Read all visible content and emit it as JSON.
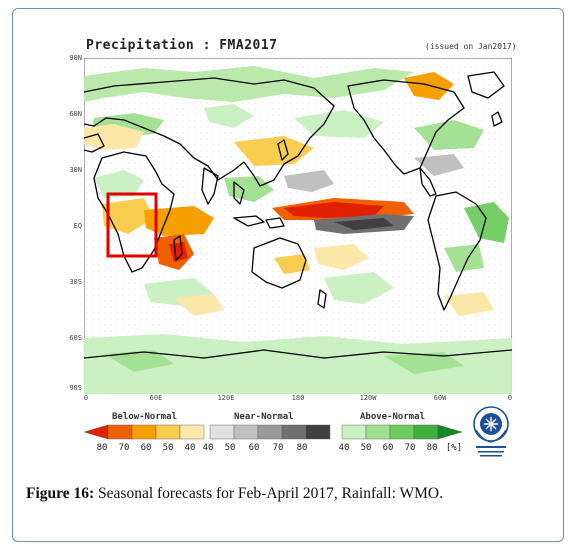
{
  "map": {
    "title": "Precipitation : FMA2017",
    "issued": "(issued on Jan2017)",
    "lat_labels": [
      "90N",
      "60N",
      "30N",
      "EQ",
      "30S",
      "60S",
      "90S"
    ],
    "lon_labels": [
      "0",
      "60E",
      "120E",
      "180",
      "120W",
      "60W",
      "0"
    ]
  },
  "legend": {
    "below_title": "Below-Normal",
    "near_title": "Near-Normal",
    "above_title": "Above-Normal",
    "below_values": [
      "80",
      "70",
      "60",
      "50",
      "40"
    ],
    "near_values": [
      "40",
      "50",
      "60",
      "70",
      "80"
    ],
    "above_values": [
      "40",
      "50",
      "60",
      "70",
      "80"
    ],
    "unit": "[%]",
    "below_colors": [
      "#e02000",
      "#f06000",
      "#f5a000",
      "#f8cd50",
      "#fbe8a8"
    ],
    "near_colors": [
      "#e0e0e0",
      "#c0c0c0",
      "#9a9a9a",
      "#707070",
      "#404040"
    ],
    "above_colors": [
      "#c8f0c0",
      "#a0e090",
      "#70cc60",
      "#40b040",
      "#108a20"
    ]
  },
  "logo": {
    "icon": "wmo-emblem-icon"
  },
  "caption": {
    "label": "Figure 16:",
    "text": "Seasonal forecasts for Feb-April 2017, Rainfall: WMO."
  }
}
